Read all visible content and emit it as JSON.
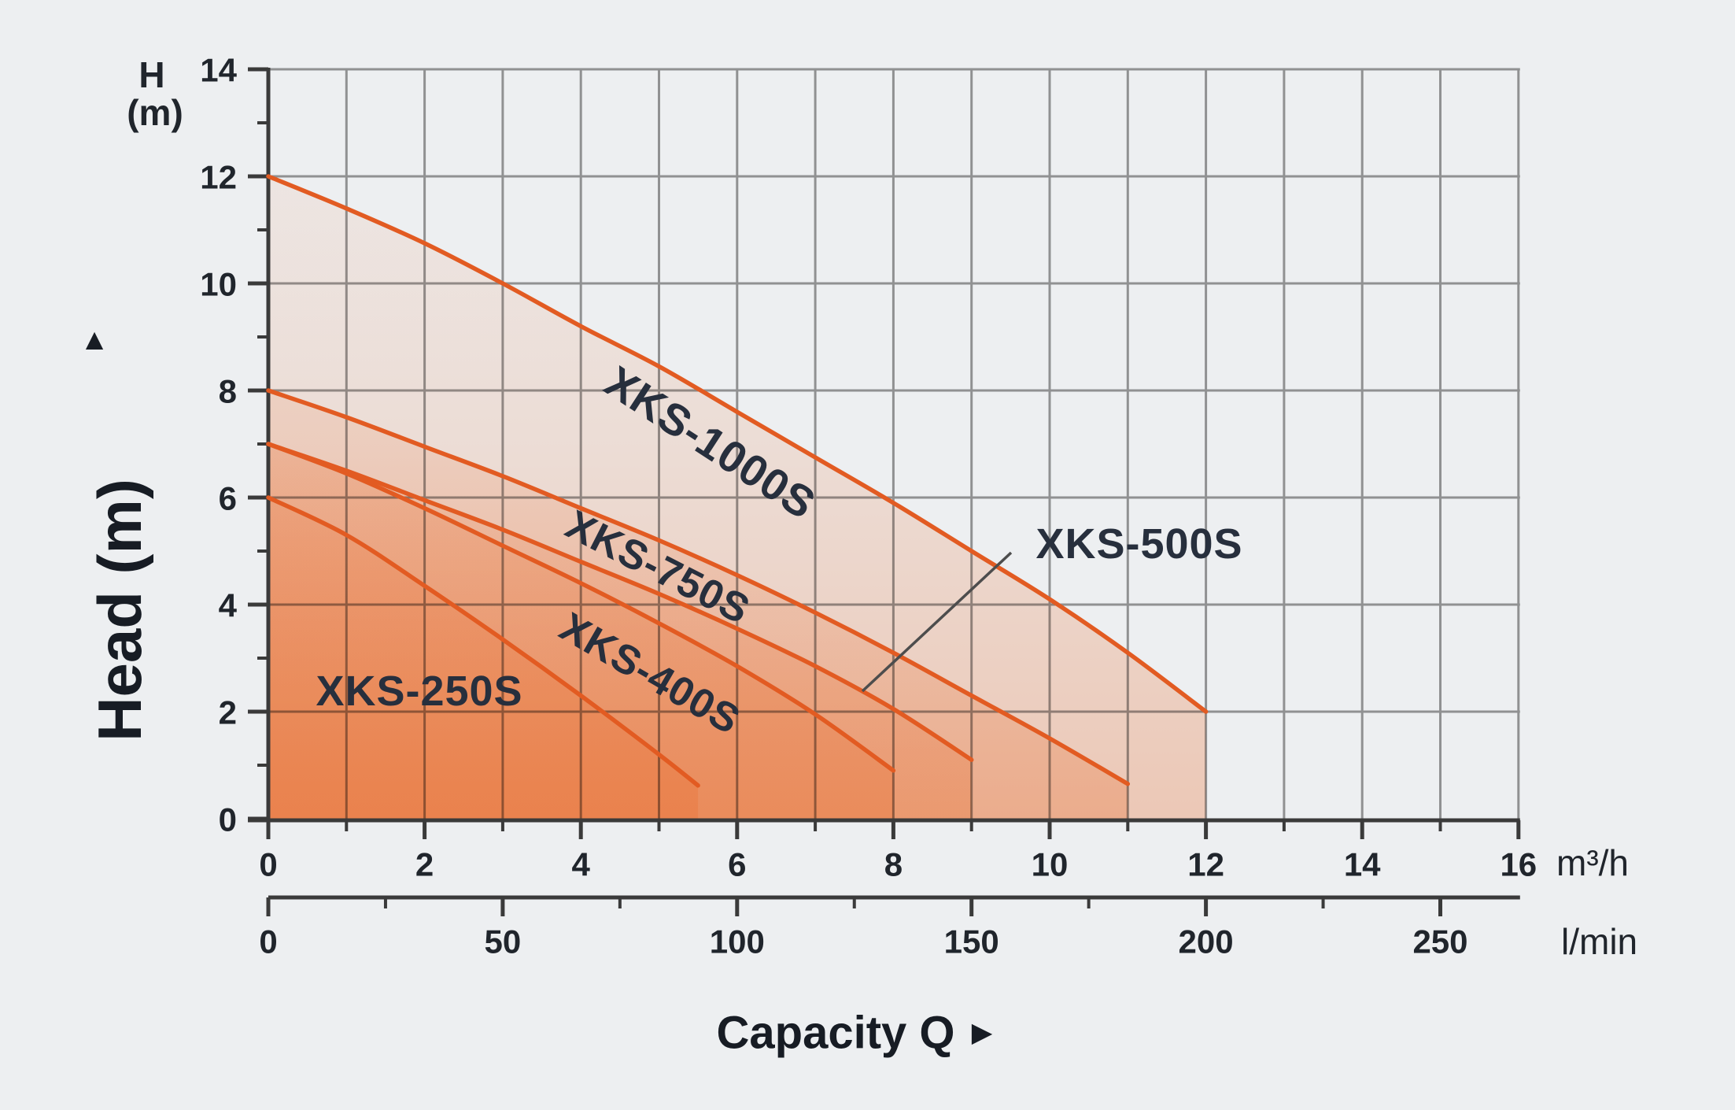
{
  "page": {
    "background": "#edeff1"
  },
  "y_axis": {
    "symbol": "H",
    "symbol_unit": "(m)",
    "arrow": "▲",
    "axis_label": "Head (m)",
    "ticks": [
      0,
      2,
      4,
      6,
      8,
      10,
      12,
      14
    ],
    "minor_step": 1,
    "range": [
      0,
      14
    ]
  },
  "x_axis_m3h": {
    "unit": "m³/h",
    "ticks": [
      0,
      2,
      4,
      6,
      8,
      10,
      12,
      14,
      16
    ],
    "minor_step": 1,
    "range": [
      0,
      16
    ]
  },
  "x_axis_lmin": {
    "unit": "l/min",
    "ticks": [
      0,
      50,
      100,
      150,
      200,
      250
    ],
    "minor_step": 25,
    "range": [
      0,
      250
    ]
  },
  "x_label": {
    "text": "Capacity Q",
    "arrow": "►"
  },
  "colors": {
    "background": "#edeff1",
    "grid": "#9b9b9b",
    "axis": "#3a3a3a",
    "curve": "#e25b22",
    "fill": "#e96c2c",
    "text": "#20252c",
    "curve_label": "#272f3d",
    "leader": "#4d4d4d"
  },
  "chart_data": {
    "type": "line",
    "title": "",
    "xlabel": "Capacity Q",
    "x_units": [
      "m³/h",
      "l/min"
    ],
    "ylabel": "Head (m)",
    "xlim_m3h": [
      0,
      16
    ],
    "ylim_m": [
      0,
      14
    ],
    "grid": true,
    "x_gridline_step_m3h": 1,
    "y_gridline_step_m": 2,
    "lmin_per_m3h": 16.6667,
    "series": [
      {
        "name": "XKS-250S",
        "points": [
          [
            0,
            6
          ],
          [
            1,
            5.3
          ],
          [
            2,
            4.35
          ],
          [
            3,
            3.35
          ],
          [
            4,
            2.3
          ],
          [
            5,
            1.2
          ],
          [
            5.5,
            0.62
          ]
        ]
      },
      {
        "name": "XKS-400S",
        "points": [
          [
            0,
            7
          ],
          [
            1,
            6.45
          ],
          [
            2,
            5.8
          ],
          [
            3,
            5.1
          ],
          [
            4,
            4.4
          ],
          [
            5,
            3.65
          ],
          [
            6,
            2.85
          ],
          [
            7,
            1.95
          ],
          [
            8,
            0.9
          ]
        ]
      },
      {
        "name": "XKS-500S",
        "points": [
          [
            0,
            7
          ],
          [
            1,
            6.5
          ],
          [
            2,
            5.95
          ],
          [
            3,
            5.4
          ],
          [
            4,
            4.8
          ],
          [
            5,
            4.2
          ],
          [
            6,
            3.55
          ],
          [
            7,
            2.85
          ],
          [
            8,
            2.05
          ],
          [
            9,
            1.1
          ]
        ]
      },
      {
        "name": "XKS-750S",
        "points": [
          [
            0,
            8
          ],
          [
            1,
            7.5
          ],
          [
            2,
            6.95
          ],
          [
            3,
            6.4
          ],
          [
            4,
            5.8
          ],
          [
            5,
            5.2
          ],
          [
            6,
            4.55
          ],
          [
            7,
            3.85
          ],
          [
            8,
            3.1
          ],
          [
            9,
            2.3
          ],
          [
            10,
            1.5
          ],
          [
            11,
            0.65
          ]
        ]
      },
      {
        "name": "XKS-1000S",
        "points": [
          [
            0,
            12
          ],
          [
            1,
            11.4
          ],
          [
            2,
            10.75
          ],
          [
            3,
            10.0
          ],
          [
            4,
            9.2
          ],
          [
            5,
            8.45
          ],
          [
            6,
            7.6
          ],
          [
            7,
            6.75
          ],
          [
            8,
            5.9
          ],
          [
            9,
            5.0
          ],
          [
            10,
            4.1
          ],
          [
            11,
            3.1
          ],
          [
            12,
            2.0
          ]
        ]
      }
    ]
  }
}
